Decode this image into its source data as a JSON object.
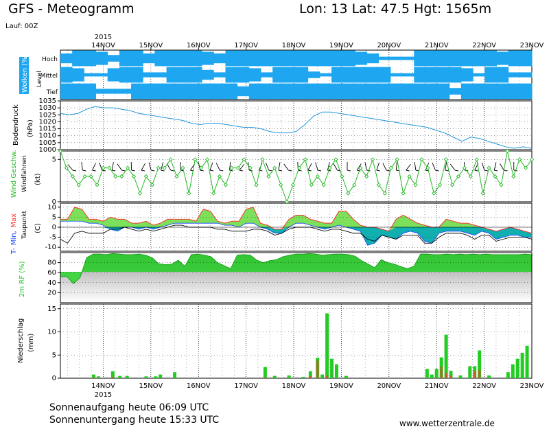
{
  "header": {
    "title": "GFS - Meteogramm",
    "location": "Lon: 13  Lat: 47.5  Hgt: 1565m",
    "run": "Lauf: 00Z"
  },
  "footer": {
    "sunrise": "Sonnenaufgang heute 06:09 UTC",
    "sunset": "Sonnenuntergang heute 15:33 UTC",
    "site": "www.wetterzentrale.de"
  },
  "colors": {
    "cloud": "#1ea7f0",
    "pressure": "#1e96dc",
    "wind": "#22b822",
    "temp_warm": "#7ce05a",
    "temp_max": "#ff3030",
    "temp_cold": "#10b0b0",
    "rh": "#22cc22",
    "precip": "#22cc22",
    "precip_conv": "#c85a2a"
  },
  "chart_data": {
    "type": "line",
    "x_labels": [
      "14NOV",
      "15NOV",
      "16NOV",
      "17NOV",
      "18NOV",
      "19NOV",
      "20NOV",
      "21NOV",
      "22NOV",
      "23NOV"
    ],
    "year_label": "2015",
    "x_range_days": [
      13.1,
      23.0
    ],
    "panels": [
      {
        "id": "clouds",
        "ylabel_main": "Wolken (%)",
        "ylabel_side": "Level",
        "levels": [
          "Hoch",
          "Mittel",
          "Tief"
        ],
        "series": [
          {
            "name": "Hoch",
            "values": [
              60,
              95,
              95,
              80,
              40,
              95,
              95,
              60,
              95,
              95,
              95,
              95,
              80,
              60,
              95,
              95,
              95,
              95,
              95,
              95,
              95,
              95,
              95,
              95,
              95,
              80,
              60,
              20,
              20,
              20,
              95,
              95,
              95,
              95,
              95,
              95,
              95,
              80,
              95,
              95
            ]
          },
          {
            "name": "Mittel",
            "values": [
              95,
              80,
              20,
              20,
              80,
              95,
              95,
              30,
              30,
              95,
              95,
              95,
              60,
              30,
              95,
              95,
              80,
              30,
              95,
              95,
              95,
              40,
              20,
              95,
              95,
              95,
              95,
              95,
              20,
              20,
              95,
              95,
              95,
              95,
              80,
              20,
              95,
              95,
              30,
              30
            ]
          },
          {
            "name": "Tief",
            "values": [
              95,
              95,
              95,
              30,
              30,
              30,
              95,
              95,
              95,
              95,
              95,
              95,
              95,
              95,
              95,
              60,
              95,
              95,
              95,
              95,
              95,
              95,
              95,
              95,
              95,
              95,
              95,
              95,
              95,
              95,
              95,
              95,
              95,
              40,
              95,
              95,
              95,
              95,
              95,
              95
            ]
          }
        ]
      },
      {
        "id": "pressure",
        "ylabel": "Bodendruck",
        "unit": "(hPa)",
        "ylim": [
          1000,
          1035
        ],
        "ticks": [
          1000,
          1005,
          1010,
          1015,
          1020,
          1025,
          1030,
          1035
        ],
        "series": [
          {
            "name": "Bodendruck",
            "values": [
              1026,
              1025,
              1026,
              1029,
              1031,
              1030,
              1030,
              1029,
              1028,
              1026,
              1025,
              1024,
              1023,
              1022,
              1021,
              1019,
              1018,
              1019,
              1019,
              1018,
              1017,
              1016,
              1016,
              1015,
              1013,
              1012,
              1012,
              1013,
              1018,
              1024,
              1027,
              1027,
              1026,
              1025,
              1024,
              1023,
              1022,
              1021,
              1020,
              1019,
              1018,
              1017,
              1016,
              1014,
              1012,
              1009,
              1006,
              1009,
              1008,
              1006,
              1004,
              1002,
              1001,
              1002,
              1001
            ]
          }
        ]
      },
      {
        "id": "wind",
        "ylabel_main": "Wind Geschw.",
        "ylabel_side": "Windfahnen",
        "unit": "(kt)",
        "ylim": [
          0,
          6
        ],
        "ticks": [
          0,
          5
        ],
        "series": [
          {
            "name": "Wind Geschw.",
            "values": [
              6,
              4,
              3,
              2,
              3,
              3,
              2,
              4,
              4,
              3,
              3,
              4,
              3,
              1,
              3,
              2,
              4,
              4,
              5,
              3,
              4,
              1,
              5,
              4,
              5,
              1,
              3,
              2,
              4,
              4,
              5,
              4,
              2,
              5,
              3,
              4,
              2,
              0,
              2,
              4,
              5,
              2,
              3,
              2,
              4,
              5,
              3,
              1,
              2,
              4,
              3,
              5,
              2,
              1,
              4,
              5,
              1,
              3,
              2,
              5,
              4,
              1,
              2,
              5,
              2,
              3,
              4,
              3,
              5,
              1,
              4,
              3,
              2,
              6,
              3,
              5,
              4,
              5
            ]
          }
        ]
      },
      {
        "id": "temperature",
        "ylabel_parts": [
          "T-",
          "Min,",
          "Max"
        ],
        "ylabel_side": "Taupunkt",
        "unit": "(C)",
        "ylim": [
          -12,
          12
        ],
        "ticks": [
          -10,
          -5,
          0,
          5,
          10
        ],
        "series": [
          {
            "name": "Max",
            "values": [
              4,
              4,
              10,
              9,
              4,
              4,
              3,
              5,
              4,
              4,
              2,
              2,
              3,
              1,
              2,
              4,
              4,
              4,
              4,
              3,
              9,
              8,
              3,
              2,
              3,
              3,
              9,
              10,
              2,
              1,
              -1,
              -1,
              4,
              6,
              6,
              4,
              3,
              2,
              2,
              8,
              8,
              4,
              1,
              0,
              0,
              -1,
              -2,
              4,
              6,
              4,
              2,
              1,
              0,
              0,
              4,
              3,
              2,
              2,
              1,
              0,
              -1,
              -2,
              -1,
              0,
              -1,
              -2,
              -3
            ]
          },
          {
            "name": "Min",
            "values": [
              3,
              3,
              3,
              3,
              2,
              2,
              1,
              -1,
              -2,
              0,
              0,
              -1,
              0,
              -1,
              0,
              1,
              2,
              2,
              2,
              2,
              2,
              2,
              2,
              1,
              1,
              0,
              2,
              2,
              0,
              -1,
              -3,
              -3,
              0,
              2,
              2,
              1,
              0,
              -1,
              0,
              1,
              0,
              -1,
              -2,
              -9,
              -8,
              -4,
              -5,
              -6,
              -3,
              -2,
              -3,
              -7,
              -8,
              -3,
              -2,
              -2,
              -2,
              -3,
              -4,
              -2,
              -3,
              -6,
              -5,
              -4,
              -4,
              -5,
              -5
            ]
          },
          {
            "name": "Taupunkt",
            "values": [
              -6,
              -8,
              -3,
              -2,
              -3,
              -3,
              -3,
              -1,
              -1,
              0,
              -1,
              -2,
              -1,
              -2,
              -1,
              0,
              1,
              1,
              0,
              0,
              0,
              0,
              -1,
              -1,
              -2,
              -2,
              -2,
              -1,
              -1,
              -2,
              -4,
              -3,
              -1,
              0,
              0,
              0,
              -1,
              -2,
              -1,
              -1,
              -2,
              -3,
              -3,
              -6,
              -7,
              -4,
              -5,
              -6,
              -4,
              -4,
              -4,
              -8,
              -8,
              -5,
              -3,
              -3,
              -3,
              -4,
              -6,
              -4,
              -4,
              -7,
              -6,
              -5,
              -5,
              -5,
              -6
            ]
          }
        ]
      },
      {
        "id": "humidity",
        "ylabel": "2m RF (%)",
        "ylim": [
          0,
          100
        ],
        "ticks": [
          20,
          40,
          60,
          80
        ],
        "series": [
          {
            "name": "2m RF",
            "values": [
              52,
              52,
              38,
              50,
              90,
              97,
              97,
              96,
              98,
              97,
              96,
              96,
              97,
              95,
              90,
              78,
              76,
              77,
              85,
              73,
              96,
              97,
              95,
              92,
              80,
              74,
              68,
              95,
              96,
              95,
              85,
              80,
              84,
              86,
              92,
              95,
              97,
              97,
              98,
              97,
              95,
              96,
              97,
              97,
              96,
              93,
              84,
              77,
              70,
              86,
              80,
              77,
              72,
              68,
              73,
              97,
              97,
              96,
              96,
              97,
              96,
              97,
              96,
              97,
              96,
              97,
              96,
              96,
              96,
              96,
              96,
              97,
              96
            ]
          }
        ]
      },
      {
        "id": "precip",
        "ylabel": "Niederschlag",
        "unit": "(mm)",
        "ylim": [
          0,
          16
        ],
        "ticks": [
          0,
          5,
          10,
          15
        ],
        "bars": [
          {
            "day": 13.8,
            "total": 0.8,
            "conv": 0.2
          },
          {
            "day": 13.9,
            "total": 0.4,
            "conv": 0.0
          },
          {
            "day": 14.2,
            "total": 1.5,
            "conv": 0.3
          },
          {
            "day": 14.35,
            "total": 0.5,
            "conv": 0.0
          },
          {
            "day": 14.5,
            "total": 0.5,
            "conv": 0.0
          },
          {
            "day": 14.9,
            "total": 0.4,
            "conv": 0.0
          },
          {
            "day": 15.1,
            "total": 0.4,
            "conv": 0.0
          },
          {
            "day": 15.2,
            "total": 0.8,
            "conv": 0.0
          },
          {
            "day": 15.5,
            "total": 1.3,
            "conv": 0.0
          },
          {
            "day": 17.4,
            "total": 2.4,
            "conv": 0.2
          },
          {
            "day": 17.6,
            "total": 0.5,
            "conv": 0.0
          },
          {
            "day": 17.9,
            "total": 0.6,
            "conv": 0.0
          },
          {
            "day": 18.2,
            "total": 0.3,
            "conv": 0.0
          },
          {
            "day": 18.35,
            "total": 1.5,
            "conv": 0.5
          },
          {
            "day": 18.5,
            "total": 4.4,
            "conv": 3.8
          },
          {
            "day": 18.6,
            "total": 0.8,
            "conv": 0.0
          },
          {
            "day": 18.7,
            "total": 14.0,
            "conv": 0.6
          },
          {
            "day": 18.8,
            "total": 4.2,
            "conv": 0.0
          },
          {
            "day": 18.9,
            "total": 3.0,
            "conv": 0.0
          },
          {
            "day": 19.1,
            "total": 0.5,
            "conv": 0.0
          },
          {
            "day": 20.8,
            "total": 2.0,
            "conv": 0.0
          },
          {
            "day": 20.9,
            "total": 0.8,
            "conv": 0.0
          },
          {
            "day": 21.0,
            "total": 2.0,
            "conv": 0.0
          },
          {
            "day": 21.1,
            "total": 4.5,
            "conv": 2.5
          },
          {
            "day": 21.2,
            "total": 9.4,
            "conv": 1.2
          },
          {
            "day": 21.3,
            "total": 1.6,
            "conv": 0.6
          },
          {
            "day": 21.5,
            "total": 0.6,
            "conv": 0.0
          },
          {
            "day": 21.7,
            "total": 2.6,
            "conv": 0.0
          },
          {
            "day": 21.8,
            "total": 2.6,
            "conv": 1.5
          },
          {
            "day": 21.9,
            "total": 6.0,
            "conv": 1.8
          },
          {
            "day": 22.1,
            "total": 0.6,
            "conv": 0.0
          },
          {
            "day": 22.5,
            "total": 1.3,
            "conv": 0.0
          },
          {
            "day": 22.6,
            "total": 3.0,
            "conv": 0.0
          },
          {
            "day": 22.7,
            "total": 4.2,
            "conv": 0.0
          },
          {
            "day": 22.8,
            "total": 5.5,
            "conv": 0.0
          },
          {
            "day": 22.9,
            "total": 7.0,
            "conv": 0.0
          }
        ]
      }
    ]
  }
}
